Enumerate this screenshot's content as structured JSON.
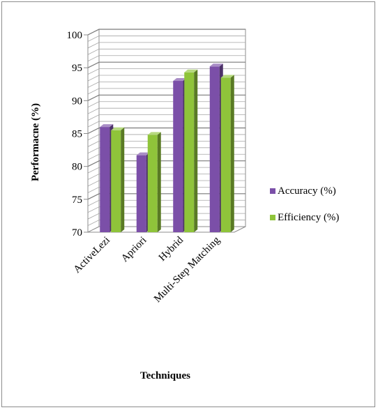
{
  "chart_data": {
    "type": "bar",
    "style": "3d-clustered-column",
    "categories": [
      "ActiveLezi",
      "Apriori",
      "Hybrid",
      "Multi-Step Matching"
    ],
    "series": [
      {
        "name": "Accuracy (%)",
        "values": [
          86,
          81.7,
          93,
          95.2
        ],
        "color": "#7b4fa8"
      },
      {
        "name": "Efficiency (%)",
        "values": [
          85.5,
          84.8,
          94.3,
          93.5
        ],
        "color": "#8fc43a"
      }
    ],
    "xlabel": "Techniques",
    "ylabel": "Performacne (%)",
    "ylim": [
      70,
      100
    ],
    "yticks": [
      70,
      75,
      80,
      85,
      90,
      95,
      100
    ],
    "grid": true,
    "legend": "right"
  }
}
